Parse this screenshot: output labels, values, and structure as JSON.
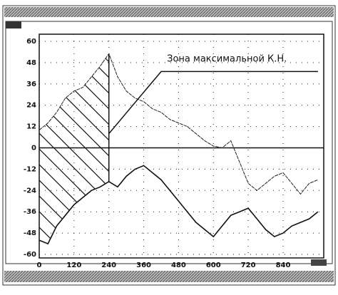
{
  "chart_data": {
    "type": "line",
    "annotation": "Зона максимальной К.Н.",
    "zone_x": 240,
    "x": [
      0,
      30,
      60,
      90,
      120,
      150,
      180,
      210,
      240,
      270,
      300,
      330,
      360,
      390,
      420,
      450,
      480,
      510,
      540,
      570,
      600,
      630,
      660,
      690,
      720,
      750,
      780,
      810,
      840,
      870,
      900,
      930,
      960
    ],
    "series": [
      {
        "color": "#222",
        "dashed": true,
        "values": [
          10,
          14,
          20,
          28,
          32,
          34,
          40,
          46,
          53,
          40,
          32,
          28,
          26,
          22,
          20,
          16,
          14,
          12,
          8,
          4,
          1,
          0,
          4,
          -8,
          -20,
          -24,
          -20,
          -16,
          -14,
          -20,
          -26,
          -20,
          -18
        ]
      },
      {
        "color": "#111",
        "dashed": false,
        "values": [
          -52,
          -54,
          -44,
          -38,
          -32,
          -28,
          -24,
          -22,
          -19,
          -22,
          -16,
          -12,
          -10,
          -14,
          -18,
          -24,
          -30,
          -36,
          -42,
          -46,
          -50,
          -44,
          -38,
          -36,
          -34,
          -40,
          -46,
          -50,
          -48,
          -44,
          -42,
          -40,
          -36
        ]
      }
    ],
    "xlim": [
      0,
      980
    ],
    "ylim": [
      -62,
      64
    ],
    "xticks": [
      0,
      120,
      240,
      360,
      480,
      600,
      720,
      840
    ],
    "yticks": [
      60,
      48,
      36,
      24,
      12,
      0,
      -12,
      -24,
      -36,
      -48,
      -60
    ],
    "grid": true
  }
}
